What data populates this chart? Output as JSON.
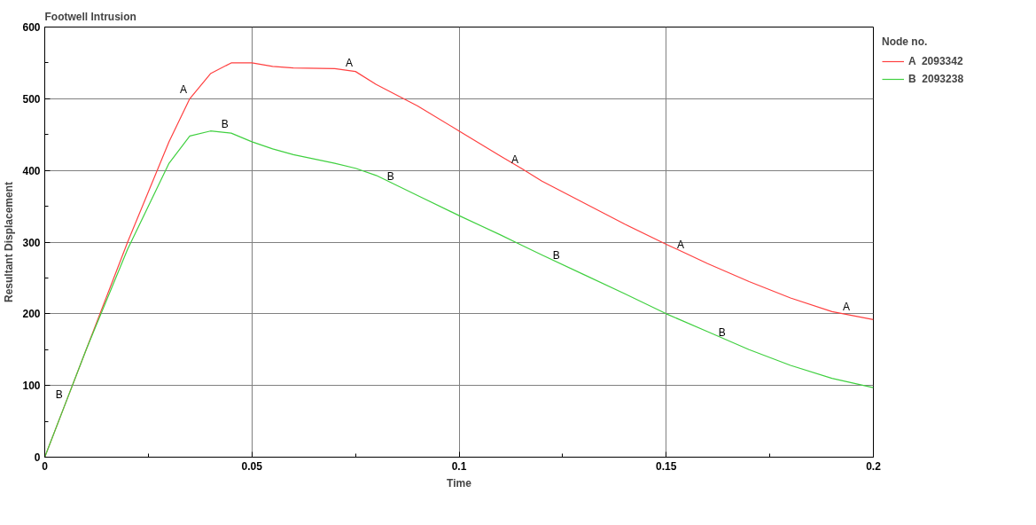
{
  "chart_data": {
    "type": "line",
    "title": "Footwell Intrusion",
    "xlabel": "Time",
    "ylabel": "Resultant Displacement",
    "legend_title": "Node no.",
    "x": [
      0,
      0.005,
      0.01,
      0.02,
      0.03,
      0.035,
      0.04,
      0.045,
      0.05,
      0.055,
      0.06,
      0.07,
      0.075,
      0.08,
      0.09,
      0.1,
      0.11,
      0.115,
      0.12,
      0.13,
      0.14,
      0.15,
      0.16,
      0.17,
      0.18,
      0.19,
      0.2
    ],
    "series": [
      {
        "name": "A  2093342",
        "color": "#ff4040",
        "values": [
          0,
          75,
          150,
          300,
          440,
          500,
          535,
          550,
          550,
          545,
          543,
          542,
          538,
          520,
          490,
          455,
          420,
          403,
          385,
          355,
          325,
          297,
          270,
          245,
          222,
          203,
          192
        ]
      },
      {
        "name": "B  2093238",
        "color": "#40d040",
        "values": [
          0,
          75,
          150,
          290,
          410,
          448,
          455,
          452,
          440,
          430,
          422,
          410,
          403,
          393,
          365,
          337,
          310,
          296,
          282,
          255,
          228,
          200,
          175,
          150,
          128,
          110,
          97
        ]
      }
    ],
    "annotations": [
      {
        "text": "A",
        "x": 0.035,
        "y": 500
      },
      {
        "text": "A",
        "x": 0.075,
        "y": 538
      },
      {
        "text": "A",
        "x": 0.115,
        "y": 403
      },
      {
        "text": "A",
        "x": 0.155,
        "y": 284
      },
      {
        "text": "A",
        "x": 0.195,
        "y": 197
      },
      {
        "text": "B",
        "x": 0.005,
        "y": 75
      },
      {
        "text": "B",
        "x": 0.045,
        "y": 452
      },
      {
        "text": "B",
        "x": 0.085,
        "y": 379
      },
      {
        "text": "B",
        "x": 0.125,
        "y": 269
      },
      {
        "text": "B",
        "x": 0.165,
        "y": 162
      }
    ],
    "xlim": [
      0,
      0.2
    ],
    "ylim": [
      0,
      600
    ],
    "xticks": [
      0,
      0.05,
      0.1,
      0.15,
      0.2
    ],
    "yticks": [
      0,
      100,
      200,
      300,
      400,
      500,
      600
    ],
    "grid": true,
    "legend": "right",
    "marker": "none",
    "line_style": "solid"
  }
}
